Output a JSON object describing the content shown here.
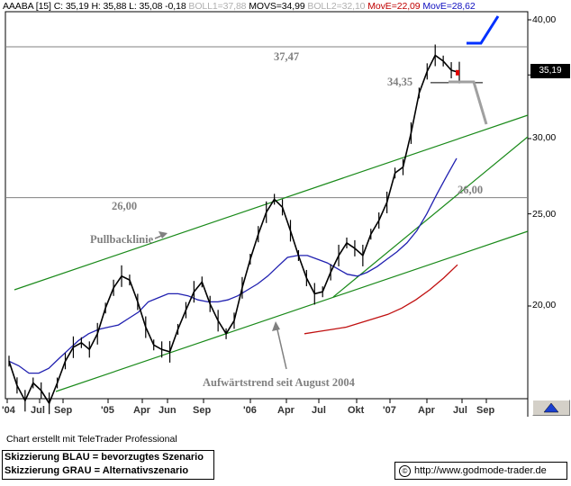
{
  "header": {
    "symbol": "AAABA [15]",
    "close": "C: 35,19",
    "high": "H: 35,88",
    "low": "L: 35,08",
    "change": "-0,18",
    "boll1": "BOLL1=37,88",
    "movs": "MOVS=34,99",
    "boll2": "BOLL2=32,10",
    "move1": "MovE=22,09",
    "move2": "MovE=28,62"
  },
  "chart_data": {
    "type": "line",
    "y_ticks": [
      "40,00",
      "35,19",
      "30,00",
      "25,00",
      "20,00"
    ],
    "x_ticks": [
      "'04",
      "Jul",
      "Sep",
      "'05",
      "Apr",
      "Jun",
      "Sep",
      "'06",
      "Apr",
      "Jul",
      "Okt",
      "'07",
      "Apr",
      "Jul",
      "Sep"
    ],
    "last_price": "35,19",
    "ylim": [
      15.5,
      41.5
    ],
    "y_scale": "log",
    "price_bars": [
      {
        "t": 0,
        "v": 17.5
      },
      {
        "t": 1,
        "v": 16.5
      },
      {
        "t": 2,
        "v": 15.9
      },
      {
        "t": 3,
        "v": 16.6
      },
      {
        "t": 4,
        "v": 16.3
      },
      {
        "t": 5,
        "v": 15.8
      },
      {
        "t": 6,
        "v": 16.6
      },
      {
        "t": 7,
        "v": 17.5
      },
      {
        "t": 8,
        "v": 18.1
      },
      {
        "t": 9,
        "v": 18.3
      },
      {
        "t": 10,
        "v": 18.0
      },
      {
        "t": 11,
        "v": 18.7
      },
      {
        "t": 12,
        "v": 19.9
      },
      {
        "t": 13,
        "v": 20.9
      },
      {
        "t": 14,
        "v": 21.5
      },
      {
        "t": 15,
        "v": 21.3
      },
      {
        "t": 16,
        "v": 20.2
      },
      {
        "t": 17,
        "v": 19.0
      },
      {
        "t": 18,
        "v": 18.2
      },
      {
        "t": 19,
        "v": 18.0
      },
      {
        "t": 20,
        "v": 17.9
      },
      {
        "t": 21,
        "v": 18.9
      },
      {
        "t": 22,
        "v": 19.8
      },
      {
        "t": 23,
        "v": 20.7
      },
      {
        "t": 24,
        "v": 21.2
      },
      {
        "t": 25,
        "v": 20.1
      },
      {
        "t": 26,
        "v": 19.3
      },
      {
        "t": 27,
        "v": 18.7
      },
      {
        "t": 28,
        "v": 19.3
      },
      {
        "t": 29,
        "v": 20.9
      },
      {
        "t": 30,
        "v": 22.4
      },
      {
        "t": 31,
        "v": 23.8
      },
      {
        "t": 32,
        "v": 25.1
      },
      {
        "t": 33,
        "v": 25.9
      },
      {
        "t": 34,
        "v": 25.4
      },
      {
        "t": 35,
        "v": 24.0
      },
      {
        "t": 36,
        "v": 22.6
      },
      {
        "t": 37,
        "v": 21.4
      },
      {
        "t": 38,
        "v": 20.6
      },
      {
        "t": 39,
        "v": 20.7
      },
      {
        "t": 40,
        "v": 21.7
      },
      {
        "t": 41,
        "v": 22.6
      },
      {
        "t": 42,
        "v": 23.3
      },
      {
        "t": 43,
        "v": 23.0
      },
      {
        "t": 44,
        "v": 22.6
      },
      {
        "t": 45,
        "v": 23.8
      },
      {
        "t": 46,
        "v": 24.6
      },
      {
        "t": 47,
        "v": 25.7
      },
      {
        "t": 48,
        "v": 27.6
      },
      {
        "t": 49,
        "v": 28.0
      },
      {
        "t": 50,
        "v": 30.4
      },
      {
        "t": 51,
        "v": 33.5
      },
      {
        "t": 52,
        "v": 35.3
      },
      {
        "t": 53,
        "v": 36.7
      },
      {
        "t": 54,
        "v": 36.2
      },
      {
        "t": 55,
        "v": 35.4
      },
      {
        "t": 56,
        "v": 35.2
      }
    ],
    "trendlines": [
      {
        "name": "Pullbacklinie",
        "color": "#1a8a1a"
      },
      {
        "name": "Aufwärtstrend seit August 2004",
        "color": "#1a8a1a"
      }
    ],
    "horizontal_levels": [
      37.47,
      34.35,
      26.0
    ],
    "series": [
      {
        "color": "#2020b0",
        "values": [
          17.5,
          17.3,
          17.0,
          17.0,
          17.2,
          17.6,
          18.0,
          18.4,
          18.7,
          18.9,
          19.0,
          19.1,
          19.4,
          19.7,
          20.2,
          20.4,
          20.6,
          20.6,
          20.5,
          20.3,
          20.2,
          20.2,
          20.3,
          20.5,
          20.8,
          21.1,
          21.5,
          22.0,
          22.5,
          22.6,
          22.6,
          22.4,
          22.2,
          21.9,
          21.6,
          21.5,
          21.7,
          22.0,
          22.4,
          22.8,
          23.3,
          24.0,
          25.0,
          26.2,
          27.4,
          28.6
        ]
      },
      {
        "color": "#c01010",
        "values": [
          18.7,
          18.8,
          18.9,
          19.0,
          19.2,
          19.4,
          19.6,
          19.9,
          20.3,
          20.8,
          21.4,
          22.1
        ]
      }
    ],
    "scenarios": [
      {
        "name": "blau",
        "color": "#0030ff"
      },
      {
        "name": "grau",
        "color": "#a0a0a0"
      }
    ]
  },
  "annotations": {
    "level_3747": "37,47",
    "level_3435": "34,35",
    "level_2600_left": "26,00",
    "level_2600_right": "26,00",
    "pullback": "Pullbacklinie",
    "uptrend": "Aufwärtstrend seit August 2004"
  },
  "footer": {
    "credit": "Chart erstellt mit TeleTrader Professional",
    "legend_blue": "Skizzierung BLAU = bevorzugtes Szenario",
    "legend_gray": "Skizzierung GRAU = Alternativszenario",
    "copyright_symbol": "©",
    "url": "http://www.godmode-trader.de"
  }
}
